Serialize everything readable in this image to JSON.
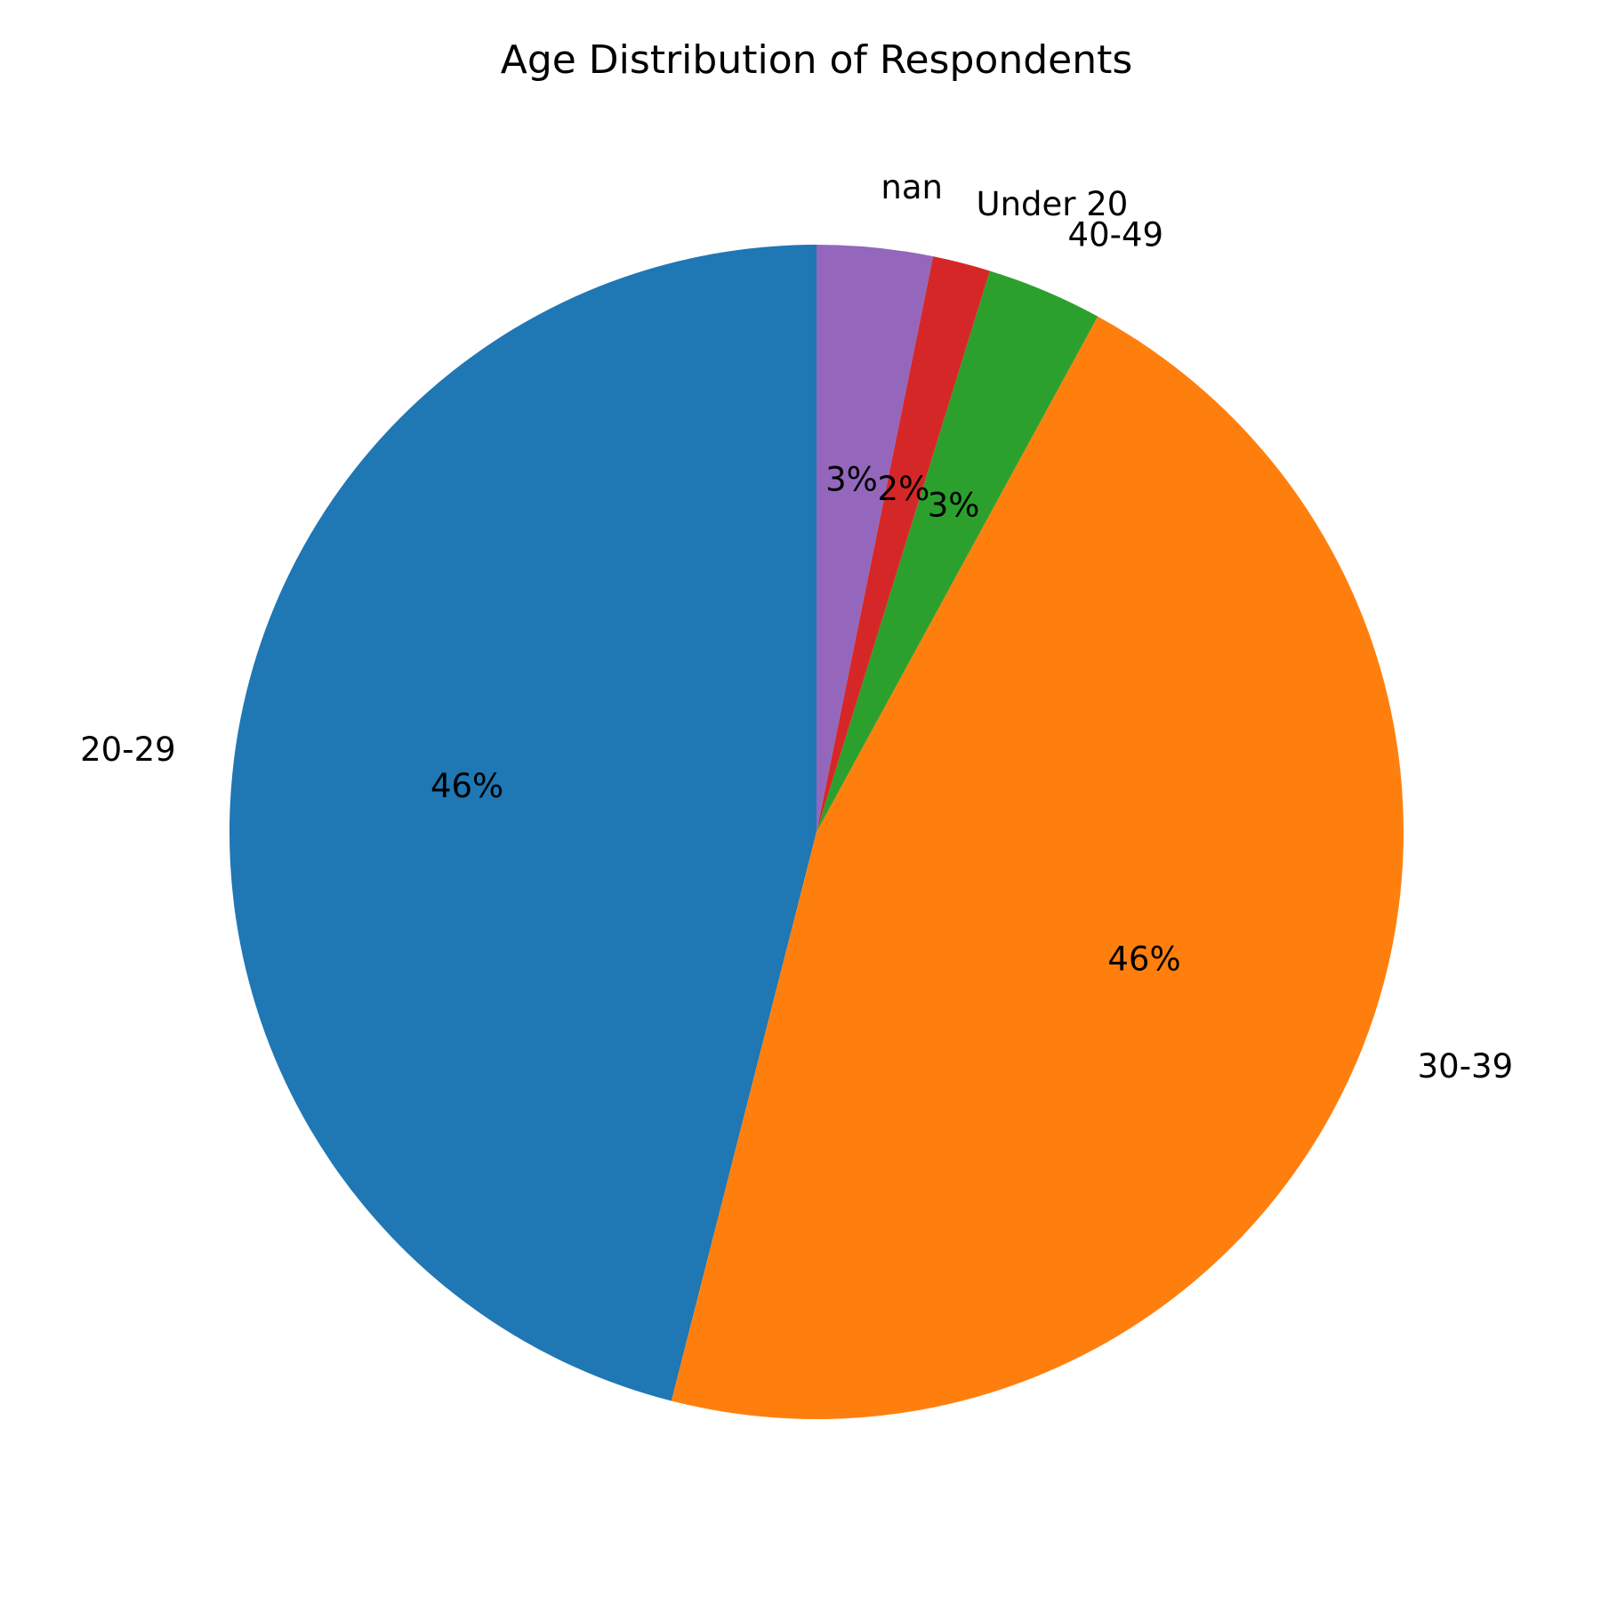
{
  "chart_data": {
    "type": "pie",
    "title": "Age Distribution of Respondents",
    "start_angle_deg": 90,
    "direction": "counterclockwise",
    "slices": [
      {
        "label": "20-29",
        "value": 46.3,
        "pct_label": "46%",
        "color": "#1f77b4"
      },
      {
        "label": "30-39",
        "value": 46.3,
        "pct_label": "46%",
        "color": "#ff7f0e"
      },
      {
        "label": "40-49",
        "value": 3.2,
        "pct_label": "3%",
        "color": "#2ca02c"
      },
      {
        "label": "Under 20",
        "value": 1.6,
        "pct_label": "2%",
        "color": "#d62728"
      },
      {
        "label": "nan",
        "value": 3.2,
        "pct_label": "3%",
        "color": "#9467bd"
      }
    ]
  }
}
